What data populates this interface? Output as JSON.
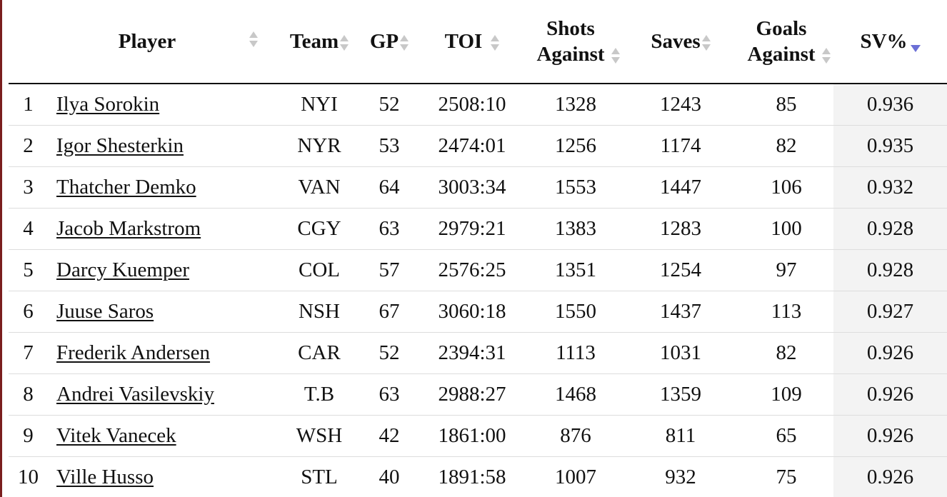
{
  "table": {
    "headers": {
      "player": "Player",
      "team": "Team",
      "gp": "GP",
      "toi": "TOI",
      "shots_against": "Shots Against",
      "saves": "Saves",
      "goals_against": "Goals Against",
      "sv_pct": "SV%"
    },
    "sorted_by": "SV%",
    "sort_direction": "descending",
    "sort_icon": "sort-desc-icon",
    "rows": [
      {
        "rank": "1",
        "player": "Ilya Sorokin",
        "team": "NYI",
        "gp": "52",
        "toi": "2508:10",
        "shots_against": "1328",
        "saves": "1243",
        "goals_against": "85",
        "sv_pct": "0.936"
      },
      {
        "rank": "2",
        "player": "Igor Shesterkin",
        "team": "NYR",
        "gp": "53",
        "toi": "2474:01",
        "shots_against": "1256",
        "saves": "1174",
        "goals_against": "82",
        "sv_pct": "0.935"
      },
      {
        "rank": "3",
        "player": "Thatcher Demko",
        "team": "VAN",
        "gp": "64",
        "toi": "3003:34",
        "shots_against": "1553",
        "saves": "1447",
        "goals_against": "106",
        "sv_pct": "0.932"
      },
      {
        "rank": "4",
        "player": "Jacob Markstrom",
        "team": "CGY",
        "gp": "63",
        "toi": "2979:21",
        "shots_against": "1383",
        "saves": "1283",
        "goals_against": "100",
        "sv_pct": "0.928"
      },
      {
        "rank": "5",
        "player": "Darcy Kuemper",
        "team": "COL",
        "gp": "57",
        "toi": "2576:25",
        "shots_against": "1351",
        "saves": "1254",
        "goals_against": "97",
        "sv_pct": "0.928"
      },
      {
        "rank": "6",
        "player": "Juuse Saros",
        "team": "NSH",
        "gp": "67",
        "toi": "3060:18",
        "shots_against": "1550",
        "saves": "1437",
        "goals_against": "113",
        "sv_pct": "0.927"
      },
      {
        "rank": "7",
        "player": "Frederik Andersen",
        "team": "CAR",
        "gp": "52",
        "toi": "2394:31",
        "shots_against": "1113",
        "saves": "1031",
        "goals_against": "82",
        "sv_pct": "0.926"
      },
      {
        "rank": "8",
        "player": "Andrei Vasilevskiy",
        "team": "T.B",
        "gp": "63",
        "toi": "2988:27",
        "shots_against": "1468",
        "saves": "1359",
        "goals_against": "109",
        "sv_pct": "0.926"
      },
      {
        "rank": "9",
        "player": "Vitek Vanecek",
        "team": "WSH",
        "gp": "42",
        "toi": "1861:00",
        "shots_against": "876",
        "saves": "811",
        "goals_against": "65",
        "sv_pct": "0.926"
      },
      {
        "rank": "10",
        "player": "Ville Husso",
        "team": "STL",
        "gp": "40",
        "toi": "1891:58",
        "shots_against": "1007",
        "saves": "932",
        "goals_against": "75",
        "sv_pct": "0.926"
      }
    ]
  },
  "colors": {
    "accent_sort_arrow": "#6b6fd6",
    "inactive_sort_arrow": "#c8c8c8",
    "sorted_column_bg": "#f3f3f3",
    "left_border": "#7a1e1e"
  }
}
